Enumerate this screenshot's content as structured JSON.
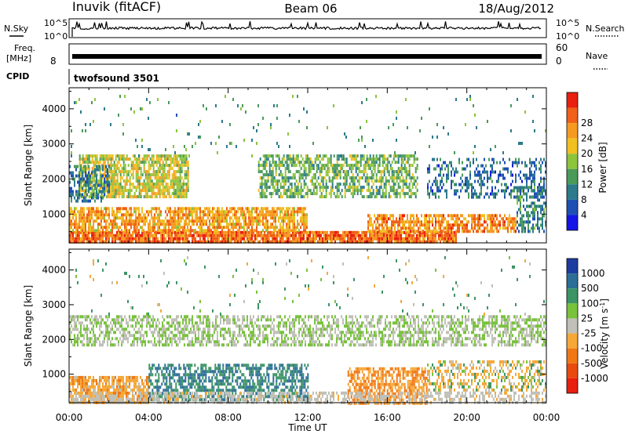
{
  "header": {
    "station": "Inuvik (fitACF)",
    "beam": "Beam 06",
    "date": "18/Aug/2012"
  },
  "top_panels": {
    "nsky_label": "N.Sky",
    "nsky_ticks": [
      "10^5",
      "10^0"
    ],
    "nsearch_label": "N.Search",
    "nsearch_ticks": [
      "10^5",
      "10^0"
    ],
    "freq_label": "Freq.",
    "freq_unit": "[MHz]",
    "freq_tick": "8",
    "nave_label": "Nave",
    "nave_ticks": [
      "60",
      "0"
    ],
    "cpid_label": "CPID",
    "cpid_value": "twofsound 3501"
  },
  "chart_data": [
    {
      "type": "heatmap",
      "name": "power",
      "xlabel": "Time UT",
      "ylabel": "Slant Range [km]",
      "x_ticks": [
        "00:00",
        "04:00",
        "08:00",
        "12:00",
        "16:00",
        "20:00",
        "00:00"
      ],
      "xlim_hours": [
        0,
        24
      ],
      "y_ticks": [
        1000,
        2000,
        3000,
        4000
      ],
      "ylim": [
        180,
        4600
      ],
      "colorbar": {
        "label": "Power [dB]",
        "ticks": [
          "4",
          "8",
          "12",
          "16",
          "20",
          "24",
          "28"
        ],
        "colors": [
          "#1414e6",
          "#1e50b4",
          "#2c7a8c",
          "#4a9a5a",
          "#8cc43c",
          "#f0c020",
          "#f59a20",
          "#f06018",
          "#e82010"
        ]
      },
      "bands": [
        {
          "range": [
            180,
            520
          ],
          "hours": [
            0.0,
            19.5
          ],
          "value": 26,
          "density": 0.9
        },
        {
          "range": [
            500,
            1200
          ],
          "hours": [
            0.0,
            12.0
          ],
          "value": 22,
          "density": 0.75
        },
        {
          "range": [
            500,
            1000
          ],
          "hours": [
            15.0,
            22.5
          ],
          "value": 24,
          "density": 0.7
        },
        {
          "range": [
            1500,
            2700
          ],
          "hours": [
            0.5,
            6.0
          ],
          "value": 18,
          "density": 0.75
        },
        {
          "range": [
            1500,
            2700
          ],
          "hours": [
            9.5,
            17.5
          ],
          "value": 14,
          "density": 0.6
        },
        {
          "range": [
            1400,
            2400
          ],
          "hours": [
            0.0,
            2.0
          ],
          "value": 9,
          "density": 0.55
        },
        {
          "range": [
            1500,
            2600
          ],
          "hours": [
            18.0,
            24.0
          ],
          "value": 8,
          "density": 0.35
        },
        {
          "range": [
            500,
            1800
          ],
          "hours": [
            22.5,
            24.0
          ],
          "value": 10,
          "density": 0.5
        },
        {
          "range": [
            2700,
            4400
          ],
          "hours": [
            0.0,
            24.0
          ],
          "value": 12,
          "density": 0.025
        }
      ]
    },
    {
      "type": "heatmap",
      "name": "velocity",
      "xlabel": "Time UT",
      "ylabel": "Slant Range [km]",
      "x_ticks": [
        "00:00",
        "04:00",
        "08:00",
        "12:00",
        "16:00",
        "20:00",
        "00:00"
      ],
      "xlim_hours": [
        0,
        24
      ],
      "y_ticks": [
        1000,
        2000,
        3000,
        4000
      ],
      "ylim": [
        180,
        4600
      ],
      "colorbar": {
        "label": "Velocity [m s^-1]",
        "ticks": [
          "1000",
          "500",
          "100",
          "25",
          "-25",
          "-100",
          "-500",
          "-1000"
        ],
        "colors": [
          "#1e3ca0",
          "#2c6e96",
          "#3c9464",
          "#78c23c",
          "#c0c0b8",
          "#f5a838",
          "#f07814",
          "#e84a10",
          "#e81e10"
        ]
      },
      "bands": [
        {
          "range": [
            180,
            950
          ],
          "hours": [
            0.0,
            4.0
          ],
          "value": -200,
          "density": 0.8
        },
        {
          "range": [
            300,
            1300
          ],
          "hours": [
            4.0,
            12.0
          ],
          "value": 300,
          "density": 0.6
        },
        {
          "range": [
            200,
            1200
          ],
          "hours": [
            14.0,
            18.0
          ],
          "value": -300,
          "density": 0.65
        },
        {
          "range": [
            1800,
            2700
          ],
          "hours": [
            0.0,
            24.0
          ],
          "value": 0,
          "density": 0.55
        },
        {
          "range": [
            500,
            1400
          ],
          "hours": [
            18.0,
            24.0
          ],
          "value": -80,
          "density": 0.4
        },
        {
          "range": [
            180,
            500
          ],
          "hours": [
            0.0,
            24.0
          ],
          "value": -40,
          "density": 0.5
        },
        {
          "range": [
            2700,
            4400
          ],
          "hours": [
            0.0,
            24.0
          ],
          "value": 80,
          "density": 0.02
        }
      ]
    }
  ]
}
